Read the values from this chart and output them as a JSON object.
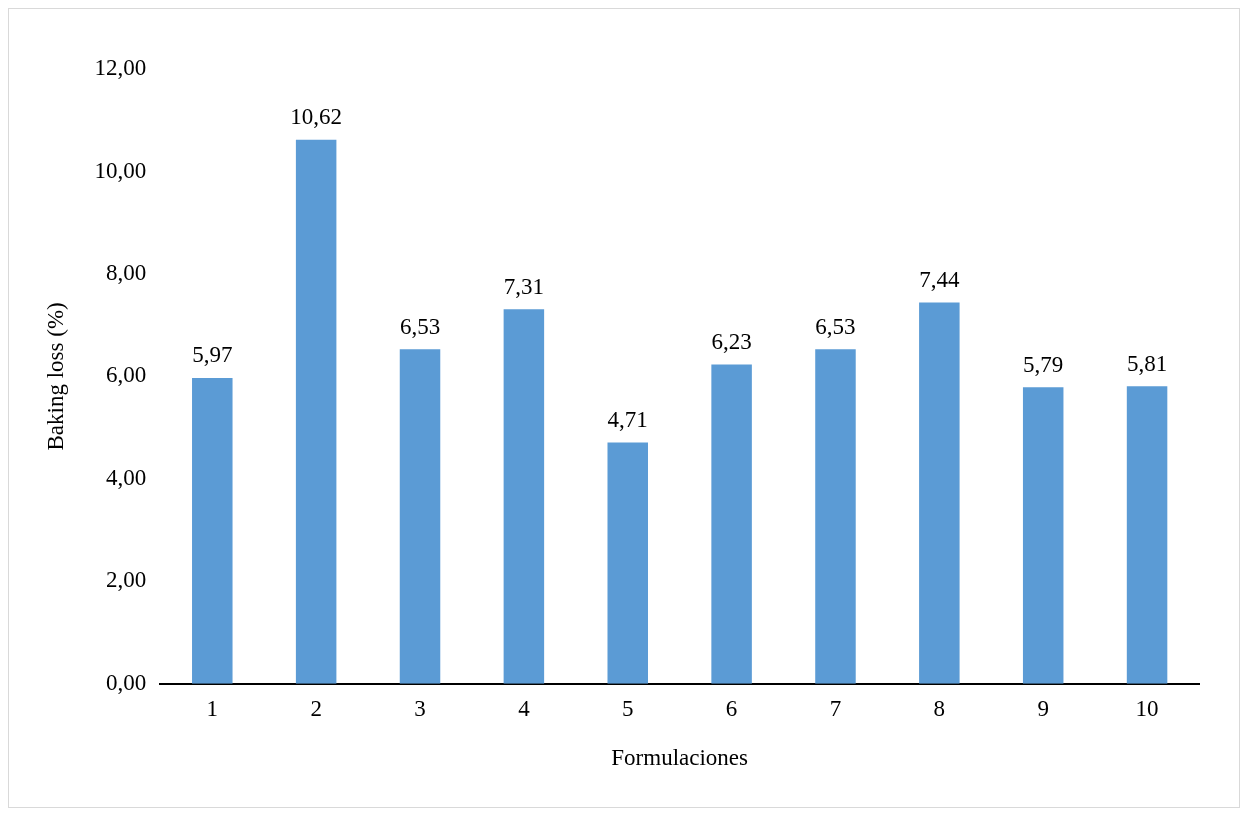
{
  "chart_data": {
    "type": "bar",
    "xlabel": "Formulaciones",
    "ylabel": "Baking loss (%)",
    "categories": [
      "1",
      "2",
      "3",
      "4",
      "5",
      "6",
      "7",
      "8",
      "9",
      "10"
    ],
    "values": [
      5.97,
      10.62,
      6.53,
      7.31,
      4.71,
      6.23,
      6.53,
      7.44,
      5.79,
      5.81
    ],
    "value_labels": [
      "5,97",
      "10,62",
      "6,53",
      "7,31",
      "4,71",
      "6,23",
      "6,53",
      "7,44",
      "5,79",
      "5,81"
    ],
    "color": "#5b9bd5",
    "ylim": [
      0,
      12
    ],
    "yticks": [
      {
        "value": 0,
        "label": "0,00"
      },
      {
        "value": 2,
        "label": "2,00"
      },
      {
        "value": 4,
        "label": "4,00"
      },
      {
        "value": 6,
        "label": "6,00"
      },
      {
        "value": 8,
        "label": "8,00"
      },
      {
        "value": 10,
        "label": "10,00"
      },
      {
        "value": 12,
        "label": "12,00"
      }
    ]
  }
}
